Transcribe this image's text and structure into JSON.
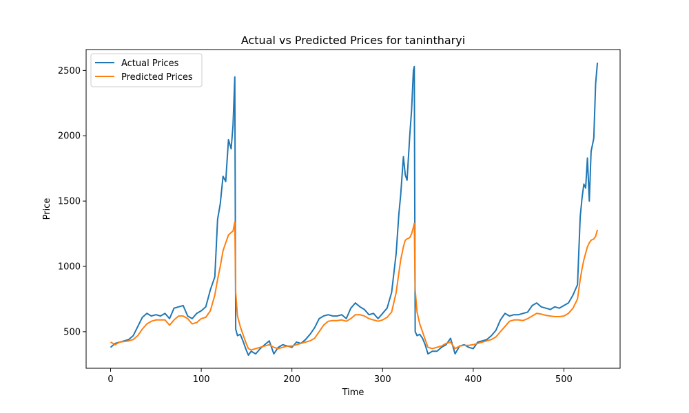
{
  "chart_data": {
    "type": "line",
    "title": "Actual vs Predicted Prices for tanintharyi",
    "xlabel": "Time",
    "ylabel": "Price",
    "xlim": [
      -27,
      562
    ],
    "ylim": [
      220,
      2660
    ],
    "xticks": [
      0,
      100,
      200,
      300,
      400,
      500
    ],
    "yticks": [
      500,
      1000,
      1500,
      2000,
      2500
    ],
    "grid": false,
    "legend_position": "top-left",
    "series": [
      {
        "name": "Actual Prices",
        "color": "#1f77b4",
        "points": [
          [
            0,
            380
          ],
          [
            5,
            410
          ],
          [
            10,
            420
          ],
          [
            15,
            430
          ],
          [
            20,
            440
          ],
          [
            25,
            470
          ],
          [
            30,
            540
          ],
          [
            35,
            610
          ],
          [
            40,
            640
          ],
          [
            45,
            620
          ],
          [
            50,
            630
          ],
          [
            55,
            620
          ],
          [
            60,
            640
          ],
          [
            65,
            600
          ],
          [
            70,
            680
          ],
          [
            75,
            690
          ],
          [
            80,
            700
          ],
          [
            85,
            620
          ],
          [
            90,
            600
          ],
          [
            95,
            640
          ],
          [
            100,
            660
          ],
          [
            105,
            690
          ],
          [
            110,
            820
          ],
          [
            115,
            920
          ],
          [
            118,
            1360
          ],
          [
            121,
            1480
          ],
          [
            124,
            1690
          ],
          [
            127,
            1650
          ],
          [
            130,
            1970
          ],
          [
            133,
            1900
          ],
          [
            135,
            2080
          ],
          [
            137,
            2450
          ],
          [
            138,
            520
          ],
          [
            140,
            470
          ],
          [
            143,
            480
          ],
          [
            146,
            430
          ],
          [
            149,
            370
          ],
          [
            152,
            320
          ],
          [
            155,
            350
          ],
          [
            160,
            330
          ],
          [
            165,
            370
          ],
          [
            170,
            400
          ],
          [
            175,
            430
          ],
          [
            180,
            330
          ],
          [
            185,
            380
          ],
          [
            190,
            400
          ],
          [
            195,
            390
          ],
          [
            200,
            380
          ],
          [
            205,
            420
          ],
          [
            210,
            410
          ],
          [
            215,
            440
          ],
          [
            220,
            480
          ],
          [
            225,
            530
          ],
          [
            230,
            600
          ],
          [
            235,
            620
          ],
          [
            240,
            630
          ],
          [
            245,
            620
          ],
          [
            250,
            620
          ],
          [
            255,
            630
          ],
          [
            260,
            600
          ],
          [
            265,
            680
          ],
          [
            270,
            720
          ],
          [
            275,
            690
          ],
          [
            280,
            670
          ],
          [
            285,
            630
          ],
          [
            290,
            640
          ],
          [
            295,
            600
          ],
          [
            300,
            640
          ],
          [
            305,
            680
          ],
          [
            310,
            800
          ],
          [
            315,
            1100
          ],
          [
            318,
            1400
          ],
          [
            320,
            1550
          ],
          [
            323,
            1840
          ],
          [
            325,
            1700
          ],
          [
            327,
            1660
          ],
          [
            330,
            2000
          ],
          [
            332,
            2200
          ],
          [
            334,
            2500
          ],
          [
            335,
            2530
          ],
          [
            336,
            500
          ],
          [
            338,
            470
          ],
          [
            341,
            480
          ],
          [
            344,
            450
          ],
          [
            347,
            400
          ],
          [
            350,
            330
          ],
          [
            355,
            350
          ],
          [
            360,
            350
          ],
          [
            365,
            380
          ],
          [
            370,
            400
          ],
          [
            375,
            450
          ],
          [
            380,
            330
          ],
          [
            385,
            390
          ],
          [
            390,
            400
          ],
          [
            395,
            380
          ],
          [
            400,
            370
          ],
          [
            405,
            420
          ],
          [
            410,
            430
          ],
          [
            415,
            440
          ],
          [
            420,
            470
          ],
          [
            425,
            510
          ],
          [
            430,
            590
          ],
          [
            435,
            640
          ],
          [
            440,
            620
          ],
          [
            445,
            630
          ],
          [
            450,
            630
          ],
          [
            455,
            640
          ],
          [
            460,
            650
          ],
          [
            465,
            700
          ],
          [
            470,
            720
          ],
          [
            475,
            690
          ],
          [
            480,
            680
          ],
          [
            485,
            670
          ],
          [
            490,
            690
          ],
          [
            495,
            680
          ],
          [
            500,
            700
          ],
          [
            505,
            720
          ],
          [
            510,
            780
          ],
          [
            515,
            860
          ],
          [
            518,
            1380
          ],
          [
            520,
            1520
          ],
          [
            522,
            1630
          ],
          [
            524,
            1600
          ],
          [
            526,
            1830
          ],
          [
            528,
            1500
          ],
          [
            530,
            1880
          ],
          [
            533,
            1980
          ],
          [
            535,
            2400
          ],
          [
            537,
            2560
          ]
        ]
      },
      {
        "name": "Predicted Prices",
        "color": "#ff7f0e",
        "points": [
          [
            0,
            420
          ],
          [
            5,
            400
          ],
          [
            10,
            420
          ],
          [
            15,
            425
          ],
          [
            20,
            430
          ],
          [
            25,
            440
          ],
          [
            30,
            470
          ],
          [
            35,
            520
          ],
          [
            40,
            560
          ],
          [
            45,
            580
          ],
          [
            50,
            590
          ],
          [
            55,
            590
          ],
          [
            60,
            590
          ],
          [
            65,
            550
          ],
          [
            70,
            590
          ],
          [
            75,
            620
          ],
          [
            80,
            620
          ],
          [
            85,
            600
          ],
          [
            90,
            560
          ],
          [
            95,
            570
          ],
          [
            100,
            600
          ],
          [
            105,
            610
          ],
          [
            110,
            660
          ],
          [
            115,
            780
          ],
          [
            118,
            900
          ],
          [
            121,
            1000
          ],
          [
            124,
            1120
          ],
          [
            127,
            1180
          ],
          [
            130,
            1240
          ],
          [
            133,
            1260
          ],
          [
            135,
            1270
          ],
          [
            137,
            1340
          ],
          [
            138,
            800
          ],
          [
            140,
            620
          ],
          [
            143,
            540
          ],
          [
            146,
            480
          ],
          [
            149,
            420
          ],
          [
            152,
            370
          ],
          [
            155,
            360
          ],
          [
            160,
            370
          ],
          [
            165,
            380
          ],
          [
            170,
            390
          ],
          [
            175,
            400
          ],
          [
            180,
            380
          ],
          [
            185,
            370
          ],
          [
            190,
            380
          ],
          [
            195,
            390
          ],
          [
            200,
            390
          ],
          [
            205,
            400
          ],
          [
            210,
            410
          ],
          [
            215,
            420
          ],
          [
            220,
            430
          ],
          [
            225,
            450
          ],
          [
            230,
            500
          ],
          [
            235,
            550
          ],
          [
            240,
            580
          ],
          [
            245,
            585
          ],
          [
            250,
            585
          ],
          [
            255,
            590
          ],
          [
            260,
            580
          ],
          [
            265,
            600
          ],
          [
            270,
            630
          ],
          [
            275,
            630
          ],
          [
            280,
            620
          ],
          [
            285,
            600
          ],
          [
            290,
            590
          ],
          [
            295,
            580
          ],
          [
            300,
            590
          ],
          [
            305,
            610
          ],
          [
            310,
            650
          ],
          [
            315,
            800
          ],
          [
            318,
            950
          ],
          [
            320,
            1050
          ],
          [
            323,
            1150
          ],
          [
            325,
            1200
          ],
          [
            327,
            1210
          ],
          [
            330,
            1220
          ],
          [
            332,
            1250
          ],
          [
            334,
            1300
          ],
          [
            335,
            1330
          ],
          [
            336,
            820
          ],
          [
            338,
            650
          ],
          [
            341,
            560
          ],
          [
            344,
            500
          ],
          [
            347,
            440
          ],
          [
            350,
            380
          ],
          [
            355,
            370
          ],
          [
            360,
            380
          ],
          [
            365,
            390
          ],
          [
            370,
            410
          ],
          [
            375,
            420
          ],
          [
            380,
            370
          ],
          [
            385,
            390
          ],
          [
            390,
            395
          ],
          [
            395,
            395
          ],
          [
            400,
            400
          ],
          [
            405,
            410
          ],
          [
            410,
            420
          ],
          [
            415,
            430
          ],
          [
            420,
            440
          ],
          [
            425,
            460
          ],
          [
            430,
            500
          ],
          [
            435,
            540
          ],
          [
            440,
            580
          ],
          [
            445,
            590
          ],
          [
            450,
            590
          ],
          [
            455,
            585
          ],
          [
            460,
            600
          ],
          [
            465,
            620
          ],
          [
            470,
            640
          ],
          [
            475,
            635
          ],
          [
            480,
            625
          ],
          [
            485,
            620
          ],
          [
            490,
            615
          ],
          [
            495,
            615
          ],
          [
            500,
            620
          ],
          [
            505,
            640
          ],
          [
            510,
            680
          ],
          [
            515,
            750
          ],
          [
            518,
            900
          ],
          [
            520,
            980
          ],
          [
            522,
            1050
          ],
          [
            524,
            1100
          ],
          [
            526,
            1150
          ],
          [
            528,
            1180
          ],
          [
            530,
            1200
          ],
          [
            533,
            1210
          ],
          [
            535,
            1230
          ],
          [
            537,
            1280
          ]
        ]
      }
    ]
  }
}
